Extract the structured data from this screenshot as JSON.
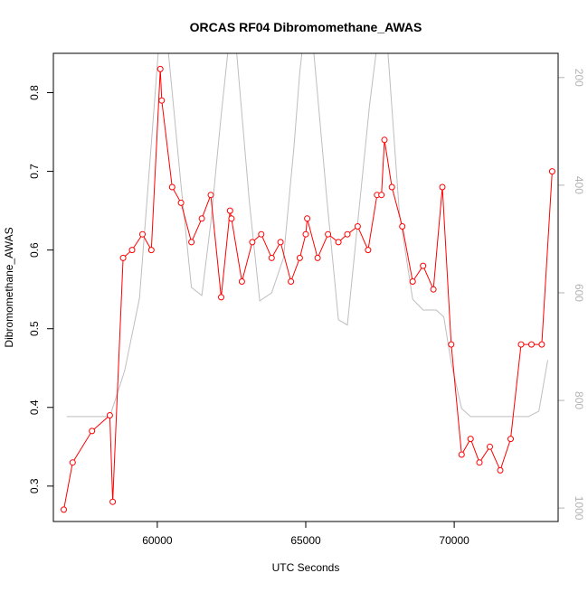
{
  "chart_data": {
    "type": "line",
    "title": "ORCAS RF04 Dibromomethane_AWAS",
    "xlabel": "UTC Seconds",
    "ylabel": "Dibromomethane_AWAS",
    "xlim": [
      56500,
      73500
    ],
    "ylim": [
      0.255,
      0.85
    ],
    "x_ticks": [
      60000,
      65000,
      70000
    ],
    "y_ticks": [
      0.3,
      0.4,
      0.5,
      0.6,
      0.7,
      0.8
    ],
    "y2_lim": [
      1025,
      155
    ],
    "y2_ticks": [
      200,
      400,
      600,
      800,
      1000
    ],
    "grid": false,
    "legend": "none",
    "series": [
      {
        "color": "#ff0000",
        "marker": "open-circle",
        "axis": "left",
        "points": [
          [
            56850,
            0.27
          ],
          [
            57150,
            0.33
          ],
          [
            57800,
            0.37
          ],
          [
            58400,
            0.39
          ],
          [
            58500,
            0.28
          ],
          [
            58850,
            0.59
          ],
          [
            59150,
            0.6
          ],
          [
            59500,
            0.62
          ],
          [
            59800,
            0.6
          ],
          [
            60100,
            0.83
          ],
          [
            60150,
            0.79
          ],
          [
            60500,
            0.68
          ],
          [
            60800,
            0.66
          ],
          [
            61150,
            0.61
          ],
          [
            61500,
            0.64
          ],
          [
            61800,
            0.67
          ],
          [
            62150,
            0.54
          ],
          [
            62450,
            0.65
          ],
          [
            62500,
            0.64
          ],
          [
            62850,
            0.56
          ],
          [
            63200,
            0.61
          ],
          [
            63500,
            0.62
          ],
          [
            63850,
            0.59
          ],
          [
            64150,
            0.61
          ],
          [
            64500,
            0.56
          ],
          [
            64800,
            0.59
          ],
          [
            65000,
            0.62
          ],
          [
            65050,
            0.64
          ],
          [
            65400,
            0.59
          ],
          [
            65750,
            0.62
          ],
          [
            66100,
            0.61
          ],
          [
            66400,
            0.62
          ],
          [
            66750,
            0.63
          ],
          [
            67100,
            0.6
          ],
          [
            67400,
            0.67
          ],
          [
            67550,
            0.67
          ],
          [
            67650,
            0.74
          ],
          [
            67900,
            0.68
          ],
          [
            68250,
            0.63
          ],
          [
            68600,
            0.56
          ],
          [
            68950,
            0.58
          ],
          [
            69300,
            0.55
          ],
          [
            69600,
            0.68
          ],
          [
            69900,
            0.48
          ],
          [
            70250,
            0.34
          ],
          [
            70550,
            0.36
          ],
          [
            70850,
            0.33
          ],
          [
            71200,
            0.35
          ],
          [
            71550,
            0.32
          ],
          [
            71900,
            0.36
          ],
          [
            72250,
            0.48
          ],
          [
            72600,
            0.48
          ],
          [
            72950,
            0.48
          ],
          [
            73300,
            0.7
          ]
        ]
      },
      {
        "color": "#bebebe",
        "marker": "none",
        "axis": "right",
        "points": [
          [
            56950,
            830
          ],
          [
            57800,
            830
          ],
          [
            58400,
            830
          ],
          [
            58900,
            745
          ],
          [
            59400,
            610
          ],
          [
            59900,
            250
          ],
          [
            60050,
            140
          ],
          [
            60350,
            140
          ],
          [
            60800,
            400
          ],
          [
            61150,
            590
          ],
          [
            61500,
            605
          ],
          [
            61800,
            470
          ],
          [
            62150,
            270
          ],
          [
            62400,
            140
          ],
          [
            62650,
            140
          ],
          [
            63100,
            430
          ],
          [
            63450,
            615
          ],
          [
            63850,
            600
          ],
          [
            64250,
            535
          ],
          [
            64600,
            330
          ],
          [
            64800,
            190
          ],
          [
            64900,
            140
          ],
          [
            65250,
            140
          ],
          [
            65700,
            420
          ],
          [
            66100,
            650
          ],
          [
            66400,
            660
          ],
          [
            66750,
            470
          ],
          [
            67150,
            250
          ],
          [
            67400,
            140
          ],
          [
            67750,
            140
          ],
          [
            68150,
            450
          ],
          [
            68600,
            612
          ],
          [
            68950,
            632
          ],
          [
            69400,
            632
          ],
          [
            69650,
            645
          ],
          [
            69900,
            730
          ],
          [
            70250,
            815
          ],
          [
            70550,
            830
          ],
          [
            71000,
            830
          ],
          [
            71500,
            830
          ],
          [
            72000,
            830
          ],
          [
            72500,
            830
          ],
          [
            72850,
            820
          ],
          [
            73150,
            725
          ]
        ]
      }
    ]
  }
}
